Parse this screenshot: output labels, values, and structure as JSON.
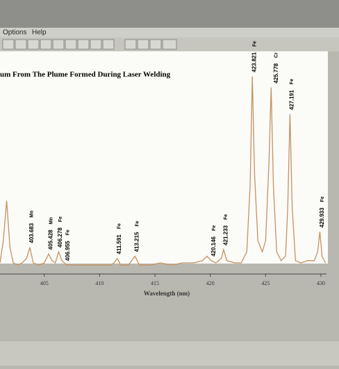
{
  "menu": [
    "Options",
    "Help"
  ],
  "chart_data": {
    "type": "line",
    "title": "um From The Plume Formed During Laser Welding",
    "xlabel": "Wavelength (nm)",
    "xlim": [
      401,
      430.5
    ],
    "ylim": [
      0,
      100
    ],
    "xticks": [
      405,
      410,
      415,
      420,
      425,
      430
    ],
    "x": [
      401.0,
      401.3,
      401.6,
      401.9,
      402.2,
      402.6,
      403.0,
      403.4,
      403.7,
      404.0,
      404.5,
      405.0,
      405.4,
      405.7,
      406.0,
      406.3,
      406.6,
      407.0,
      408.0,
      409.0,
      410.0,
      411.0,
      411.3,
      411.6,
      411.9,
      412.6,
      413.2,
      413.6,
      414.5,
      415.5,
      416.5,
      417.5,
      418.5,
      419.3,
      419.7,
      420.1,
      420.5,
      421.0,
      421.2,
      421.5,
      422.2,
      422.8,
      423.3,
      423.6,
      423.8,
      424.0,
      424.3,
      424.7,
      425.0,
      425.3,
      425.5,
      425.7,
      426.0,
      426.4,
      426.8,
      427.0,
      427.2,
      427.4,
      427.7,
      428.2,
      428.8,
      429.4,
      429.7,
      429.9,
      430.1,
      430.4
    ],
    "series": [
      {
        "color": "#c49260",
        "values": [
          5,
          15,
          33,
          12,
          5,
          4,
          5,
          7,
          12,
          5,
          4,
          5,
          9,
          6,
          5,
          10,
          6,
          4,
          4,
          4,
          4,
          4,
          5,
          7,
          4,
          4,
          8,
          4,
          4,
          5,
          4,
          5,
          5,
          6,
          8,
          6,
          5,
          7,
          11,
          6,
          5,
          5,
          10,
          40,
          89,
          45,
          15,
          10,
          15,
          50,
          84,
          40,
          10,
          6,
          8,
          30,
          72,
          30,
          6,
          5,
          6,
          6,
          10,
          19,
          8,
          5
        ]
      }
    ],
    "annotations": [
      {
        "x": 403.683,
        "label": "403.683",
        "element": "Mn"
      },
      {
        "x": 405.428,
        "label": "405.428",
        "element": "Mn"
      },
      {
        "x": 406.278,
        "label": "406.278",
        "element": "Fe"
      },
      {
        "x": 406.955,
        "label": "406.955",
        "element": "Fe"
      },
      {
        "x": 411.591,
        "label": "411.591",
        "element": "Fe"
      },
      {
        "x": 413.215,
        "label": "413.215",
        "element": "Fe"
      },
      {
        "x": 420.146,
        "label": "420.146",
        "element": "Fe"
      },
      {
        "x": 421.233,
        "label": "421.233",
        "element": "Fe"
      },
      {
        "x": 423.821,
        "label": "423.821",
        "element": "Fe"
      },
      {
        "x": 425.778,
        "label": "425.778",
        "element": "Cr"
      },
      {
        "x": 427.191,
        "label": "427.191",
        "element": "Fe"
      },
      {
        "x": 429.933,
        "label": "429.933",
        "element": "Fe"
      }
    ]
  }
}
